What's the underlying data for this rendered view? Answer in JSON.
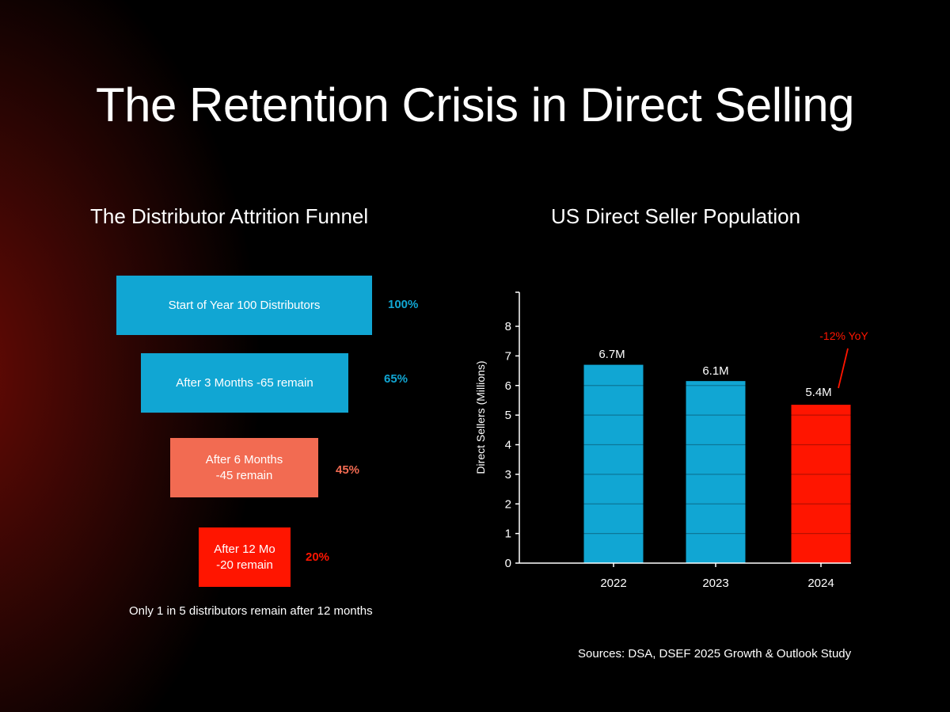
{
  "title": "The Retention Crisis in Direct Selling",
  "funnel": {
    "title": "The Distributor Attrition Funnel",
    "stages": [
      {
        "label": "Start of Year 100 Distributors",
        "percent": "100%",
        "value": 100,
        "color": "#11a6d3"
      },
      {
        "label": "After 3 Months -65 remain",
        "percent": "65%",
        "value": 65,
        "color": "#11a6d3"
      },
      {
        "label": "After 6 Months\n-45 remain",
        "percent": "45%",
        "value": 45,
        "color": "#f26b52"
      },
      {
        "label": "After 12 Mo\n-20 remain",
        "percent": "20%",
        "value": 20,
        "color": "#ff1500"
      }
    ],
    "note": "Only 1 in 5 distributors remain after 12 months"
  },
  "chart_data": {
    "type": "bar",
    "title": "US Direct Seller Population",
    "ylabel": "Direct Sellers (Millions)",
    "xlabel": "",
    "categories": [
      "2022",
      "2023",
      "2024"
    ],
    "values": [
      6.7,
      6.15,
      5.35
    ],
    "data_labels": [
      "6.7M",
      "6.1M",
      "5.4M"
    ],
    "colors": [
      "#11a6d3",
      "#11a6d3",
      "#ff1500"
    ],
    "ylim": [
      0,
      8
    ],
    "yticks": [
      0,
      1,
      2,
      3,
      4,
      5,
      6,
      7,
      8
    ],
    "grid": "horizontal lines inside bars",
    "annotation": {
      "text": "-12% YoY",
      "color": "#ff1500",
      "target": "2024"
    }
  },
  "source": "Sources: DSA, DSEF 2025 Growth & Outlook Study"
}
